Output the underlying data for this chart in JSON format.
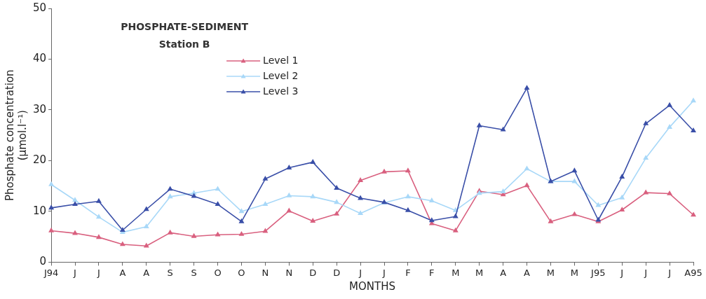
{
  "chart_data": {
    "type": "line",
    "title": "PHOSPHATE-SEDIMENT",
    "subtitle": "Station B",
    "xlabel": "MONTHS",
    "ylabel": "Phosphate concentration (µmol.l⁻¹)",
    "categories": [
      "J94",
      "J",
      "J",
      "A",
      "A",
      "S",
      "S",
      "O",
      "O",
      "N",
      "N",
      "D",
      "D",
      "J",
      "J",
      "F",
      "F",
      "M",
      "M",
      "A",
      "A",
      "M",
      "M",
      "J95",
      "J",
      "J",
      "J",
      "A95"
    ],
    "series": [
      {
        "name": "Level 1",
        "color": "#d9607f",
        "values": [
          6.2,
          5.7,
          4.9,
          3.5,
          3.2,
          5.8,
          5.1,
          5.4,
          5.5,
          6.1,
          10.1,
          8.1,
          9.5,
          16.1,
          17.8,
          18.0,
          7.6,
          6.2,
          14.0,
          13.3,
          15.1,
          8.0,
          9.4,
          8.0,
          10.3,
          13.7,
          13.5,
          9.3
        ]
      },
      {
        "name": "Level 2",
        "color": "#a8d8f8",
        "values": [
          15.3,
          12.2,
          8.9,
          5.9,
          7.0,
          12.9,
          13.6,
          14.4,
          10.0,
          11.4,
          13.1,
          12.9,
          11.8,
          9.6,
          11.7,
          12.9,
          12.1,
          10.2,
          13.6,
          13.9,
          18.4,
          15.9,
          15.9,
          11.2,
          12.7,
          20.5,
          26.6,
          31.8
        ]
      },
      {
        "name": "Level 3",
        "color": "#3a4fa8",
        "values": [
          10.7,
          11.4,
          12.0,
          6.3,
          10.4,
          14.4,
          13.0,
          11.4,
          8.0,
          16.4,
          18.6,
          19.7,
          14.6,
          12.6,
          11.8,
          10.2,
          8.2,
          9.0,
          26.9,
          26.1,
          34.3,
          15.9,
          18.0,
          8.3,
          16.8,
          27.3,
          30.9,
          25.9
        ]
      }
    ],
    "ylim": [
      0,
      50
    ],
    "yticks": [
      0,
      10,
      20,
      30,
      40,
      50
    ],
    "grid": false,
    "legend": "top left",
    "marker": "triangle",
    "line_style": "solid"
  }
}
